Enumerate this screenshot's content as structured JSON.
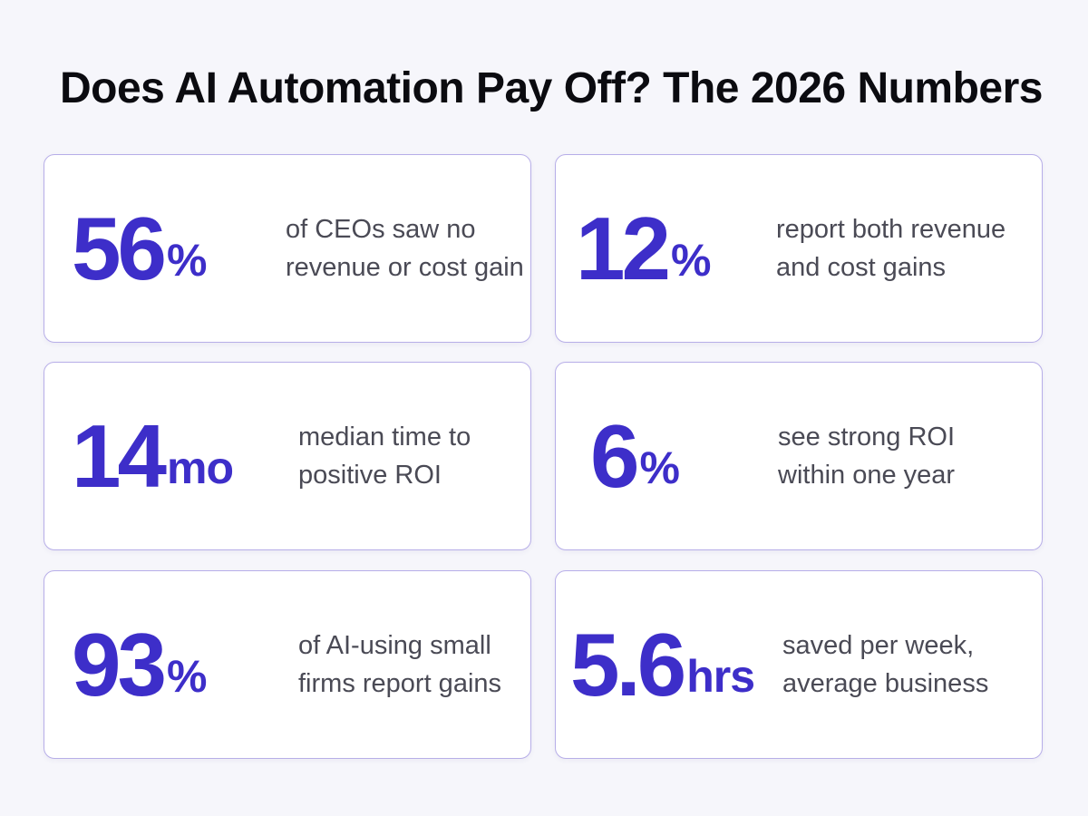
{
  "title": "Does AI Automation Pay Off? The 2026 Numbers",
  "accent_color": "#3d2ec9",
  "card_border_color": "#b7aee8",
  "stats": [
    {
      "number": "56",
      "unit": "%",
      "desc_line1": "of CEOs saw no",
      "desc_line2": "revenue or cost gain"
    },
    {
      "number": "12",
      "unit": "%",
      "desc_line1": "report both revenue",
      "desc_line2": "and cost gains"
    },
    {
      "number": "14",
      "unit": "mo",
      "desc_line1": "median time to",
      "desc_line2": "positive ROI"
    },
    {
      "number": "6",
      "unit": "%",
      "desc_line1": "see strong ROI",
      "desc_line2": "within one year"
    },
    {
      "number": "93",
      "unit": "%",
      "desc_line1": "of AI-using small",
      "desc_line2": "firms report gains"
    },
    {
      "number": "5.6",
      "unit": "hrs",
      "desc_line1": "saved per week,",
      "desc_line2": "average business"
    }
  ]
}
